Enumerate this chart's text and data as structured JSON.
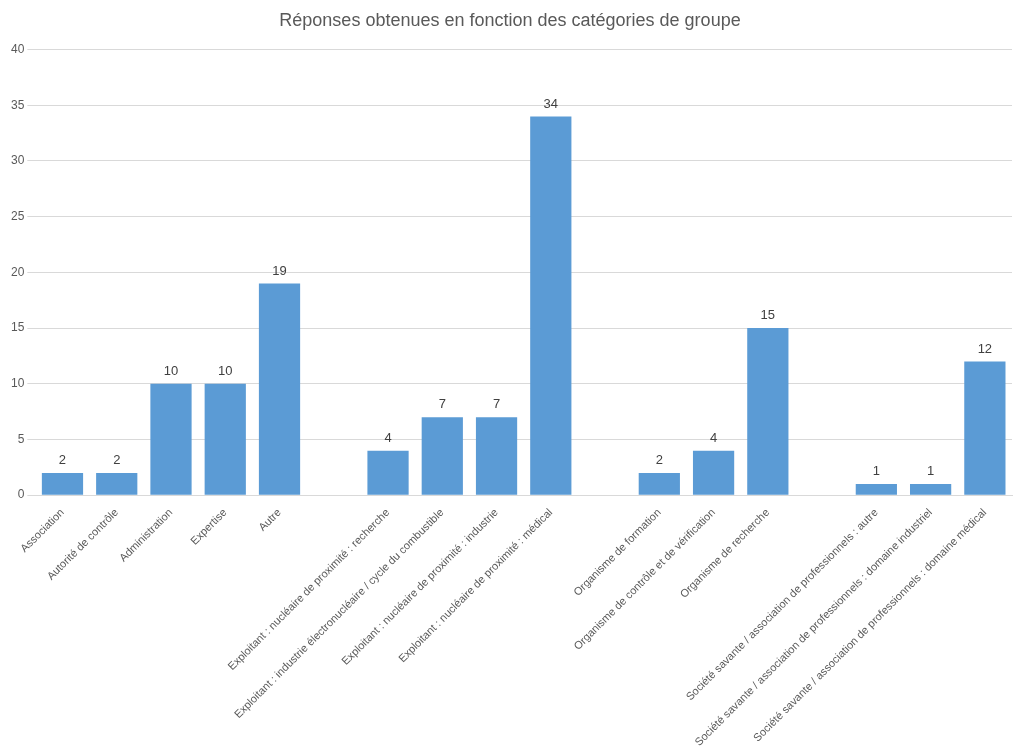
{
  "chart_data": {
    "type": "bar",
    "title": "Réponses obtenues en fonction des catégories de groupe",
    "categories": [
      "Association",
      "Autorité de contrôle",
      "Administration",
      "Expertise",
      "Autre",
      null,
      "Exploitant : nucléaire de proximité : recherche",
      "Exploitant : industrie électronucléaire / cycle du combustible",
      "Exploitant : nucléaire de proximité : industrie",
      "Exploitant : nucléaire de proximité : médical",
      null,
      "Organisme de formation",
      "Organisme de contrôle et de vérification",
      "Organisme de recherche",
      null,
      "Société savante / association de professionnels : autre",
      "Société savante / association de professionnels : domaine industriel",
      "Société savante / association de professionnels : domaine médical"
    ],
    "values": [
      2,
      2,
      10,
      10,
      19,
      null,
      4,
      7,
      7,
      34,
      null,
      2,
      4,
      15,
      null,
      1,
      1,
      12
    ],
    "color": "#5b9bd5",
    "ylim": [
      0,
      40
    ],
    "yticks": [
      0,
      5,
      10,
      15,
      20,
      25,
      30,
      35,
      40
    ],
    "grid": "y",
    "data_labels": true
  }
}
